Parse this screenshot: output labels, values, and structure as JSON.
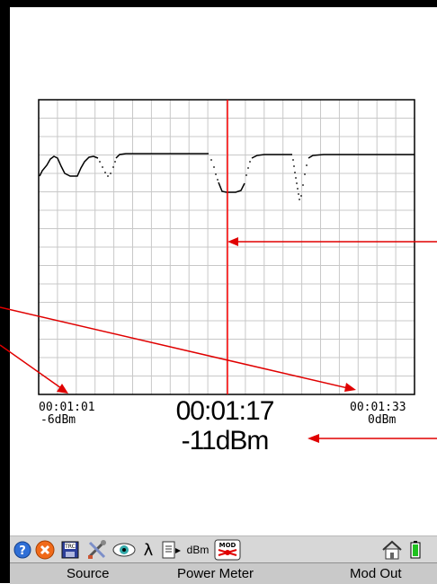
{
  "graph": {
    "left_time": "00:01:01",
    "left_power": "-6dBm",
    "right_time": "00:01:33",
    "right_power": "0dBm",
    "cursor_time": "00:01:17",
    "cursor_power": "-11dBm"
  },
  "colors": {
    "cursor": "#ff0000",
    "annotation": "#e00000",
    "grid": "#c8c8c8",
    "trace": "#000000"
  },
  "toolbar": {
    "icons": [
      "help-icon",
      "close-icon",
      "trace-save-icon",
      "tools-icon",
      "view-icon",
      "lambda-icon",
      "file-export-icon",
      "dbm-icon",
      "mod-icon",
      "home-icon",
      "battery-icon"
    ],
    "lambda_label": "λ",
    "dbm_label": "dBm",
    "trace_label": "TRC",
    "mod_label": "MOD"
  },
  "softkeys": {
    "source": "Source",
    "power_meter": "Power Meter",
    "mod_out": "Mod Out"
  }
}
